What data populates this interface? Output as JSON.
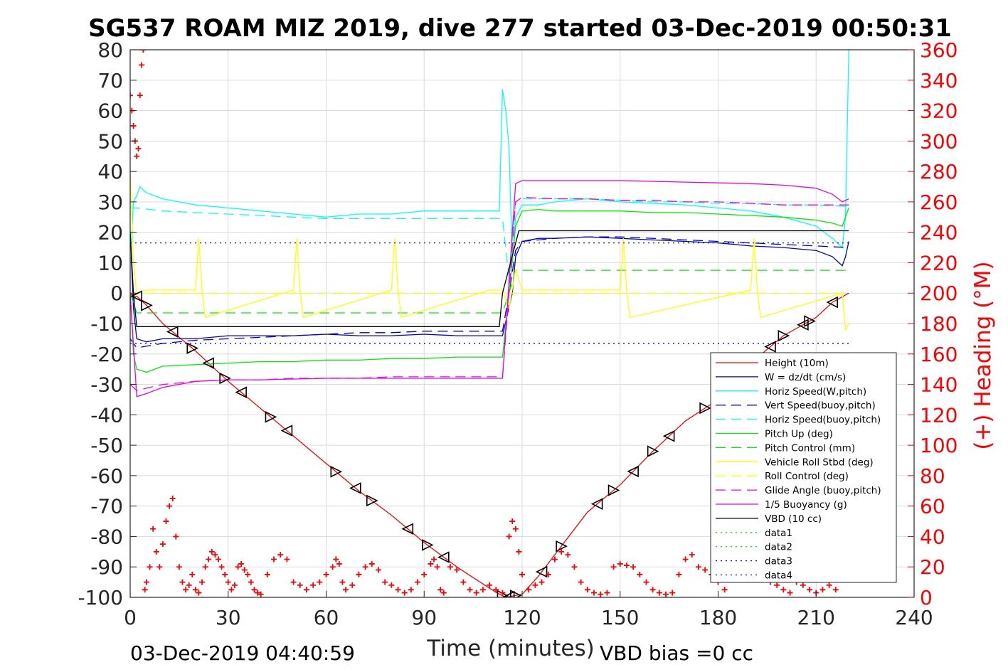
{
  "chart_data": {
    "type": "line",
    "title": "SG537 ROAM MIZ 2019, dive 277 started 03-Dec-2019 00:50:31",
    "xlabel": "Time (minutes)",
    "ylabel_right": "(+) Heading (°M)",
    "xlim": [
      0,
      240
    ],
    "ylim": [
      -100,
      80
    ],
    "ylim_right": [
      0,
      360
    ],
    "x_ticks": [
      "0",
      "30",
      "60",
      "90",
      "120",
      "150",
      "180",
      "210",
      "240"
    ],
    "y_ticks": [
      "80",
      "70",
      "60",
      "50",
      "40",
      "30",
      "20",
      "10",
      "0",
      "-10",
      "-20",
      "-30",
      "-40",
      "-50",
      "-60",
      "-70",
      "-80",
      "-90",
      "-100"
    ],
    "y_ticks_right": [
      "360",
      "340",
      "320",
      "300",
      "280",
      "260",
      "240",
      "220",
      "200",
      "180",
      "160",
      "140",
      "120",
      "100",
      "80",
      "60",
      "40",
      "20",
      "0"
    ],
    "grid": true,
    "legend_position": "lower-right",
    "footer_left": "03-Dec-2019 04:40:59",
    "footer_right": "VBD bias =0 cc",
    "series": [
      {
        "name": "Height (10m)",
        "color": "#ff0000",
        "style": "solid",
        "x": [
          0,
          1,
          2,
          5,
          10,
          20,
          30,
          40,
          50,
          60,
          70,
          80,
          90,
          100,
          110,
          113,
          115,
          120,
          125,
          130,
          140,
          150,
          160,
          170,
          180,
          190,
          200,
          210,
          215,
          220
        ],
        "y": [
          0,
          -1,
          -1,
          -4,
          -10,
          -19,
          -29,
          -38,
          -47,
          -56,
          -65,
          -73,
          -82,
          -90,
          -97,
          -99,
          -100,
          -99,
          -93,
          -86,
          -72,
          -63,
          -52,
          -42,
          -35,
          -23,
          -14,
          -8,
          -3,
          0
        ]
      },
      {
        "name": "W = dz/dt (cm/s)",
        "color": "#0000cc",
        "style": "solid",
        "x": [
          0,
          1,
          2,
          5,
          10,
          20,
          30,
          40,
          50,
          60,
          70,
          80,
          90,
          100,
          110,
          114,
          117,
          118,
          120,
          125,
          130,
          140,
          150,
          160,
          170,
          180,
          190,
          200,
          210,
          215,
          218,
          219,
          220
        ],
        "y": [
          20,
          -5,
          -15,
          -16,
          -15,
          -15,
          -14,
          -14,
          -14,
          -13.5,
          -14,
          -14,
          -13.5,
          -14,
          -14,
          -14,
          0,
          12,
          17,
          18,
          18,
          18.5,
          18,
          17.5,
          17,
          16.5,
          15.5,
          15,
          14,
          12,
          9,
          12,
          17
        ]
      },
      {
        "name": "Horiz Speed(W,pitch)",
        "color": "#00ffff",
        "style": "solid",
        "x": [
          0,
          1,
          2,
          3,
          5,
          10,
          20,
          30,
          40,
          50,
          60,
          70,
          80,
          90,
          100,
          110,
          113,
          114,
          115,
          116,
          117,
          118,
          120,
          125,
          130,
          140,
          150,
          160,
          170,
          180,
          190,
          200,
          210,
          215,
          218,
          219,
          220
        ],
        "y": [
          10,
          30,
          32,
          35,
          33,
          31,
          29,
          28,
          27,
          26,
          25,
          26,
          26,
          27,
          27,
          27,
          27,
          67,
          60,
          48,
          10,
          25,
          29,
          29,
          30,
          31,
          30,
          29.5,
          29,
          28,
          27,
          25,
          22,
          18,
          15,
          25,
          80
        ]
      },
      {
        "name": "Vert Speed(buoy,pitch)",
        "color": "#0000cc",
        "style": "dashed",
        "x": [
          0,
          2,
          10,
          20,
          30,
          40,
          50,
          60,
          70,
          80,
          90,
          100,
          110,
          114,
          116,
          118,
          120,
          130,
          140,
          150,
          160,
          170,
          180,
          190,
          200,
          210,
          220
        ],
        "y": [
          -15,
          -18,
          -16.5,
          -15.5,
          -15,
          -14.5,
          -14,
          -13.5,
          -13,
          -13,
          -12.5,
          -12.5,
          -12.5,
          -12.5,
          0,
          14,
          17,
          18,
          18.5,
          18.5,
          18,
          17.5,
          17,
          16.5,
          16,
          15.5,
          15
        ]
      },
      {
        "name": "Horiz Speed(buoy,pitch)",
        "color": "#00ffff",
        "style": "dashed",
        "x": [
          0,
          2,
          10,
          20,
          30,
          40,
          50,
          60,
          70,
          80,
          90,
          100,
          110,
          114,
          116,
          118,
          120,
          130,
          140,
          150,
          160,
          170,
          180,
          190,
          200,
          210,
          220
        ],
        "y": [
          28,
          28,
          27,
          26.5,
          26,
          25.5,
          25,
          24.5,
          24.5,
          24.5,
          24.5,
          24.5,
          24.5,
          24.5,
          5,
          30,
          31,
          31,
          31,
          30.5,
          30,
          30,
          29.5,
          29.5,
          29,
          29,
          28.5
        ]
      },
      {
        "name": "Pitch Up (deg)",
        "color": "#00ee00",
        "style": "solid",
        "x": [
          0,
          1,
          2,
          5,
          10,
          20,
          30,
          40,
          50,
          60,
          70,
          80,
          90,
          100,
          110,
          114,
          116,
          118,
          120,
          125,
          130,
          140,
          150,
          160,
          170,
          180,
          190,
          200,
          210,
          215,
          218,
          220
        ],
        "y": [
          0,
          -20,
          -25,
          -26,
          -24,
          -23.5,
          -23,
          -22.5,
          -22.5,
          -22,
          -22,
          -21.5,
          -21.5,
          -21,
          -21,
          -21,
          0,
          22,
          27,
          27.5,
          27,
          27,
          27,
          26.5,
          26.5,
          26,
          25.5,
          25,
          24,
          23,
          22,
          28
        ]
      },
      {
        "name": "Pitch Control (mm)",
        "color": "#00ee00",
        "style": "dashed",
        "x": [
          0,
          2,
          5,
          114,
          116,
          118,
          220
        ],
        "y": [
          0,
          -6.5,
          -6.5,
          -6.5,
          0,
          7.5,
          7.5
        ]
      },
      {
        "name": "Vehicle Roll Stbd (deg)",
        "color": "#ffff00",
        "style": "solid",
        "x": [
          0,
          1,
          2,
          5,
          20,
          21,
          22,
          23,
          50,
          51,
          52,
          53,
          80,
          81,
          82,
          83,
          110,
          114,
          116,
          118,
          120,
          150,
          151,
          152,
          153,
          190,
          191,
          192,
          193,
          218,
          219,
          220
        ],
        "y": [
          40,
          10,
          0,
          1,
          1,
          18,
          1,
          -8,
          1,
          18,
          1,
          -8,
          1,
          18,
          1,
          -8,
          1,
          1,
          -5,
          8,
          1,
          1,
          18,
          1,
          -8,
          1,
          18,
          1,
          -8,
          0,
          -12,
          -10
        ]
      },
      {
        "name": "Roll Control (deg)",
        "color": "#ffff00",
        "style": "dashed",
        "x": [
          0,
          220
        ],
        "y": [
          0,
          0
        ]
      },
      {
        "name": "Glide Angle (buoy,pitch)",
        "color": "#ee00ee",
        "style": "dashed",
        "x": [
          0,
          2,
          10,
          20,
          30,
          40,
          50,
          60,
          70,
          80,
          90,
          100,
          110,
          114,
          116,
          118,
          120,
          130,
          140,
          150,
          160,
          170,
          180,
          190,
          200,
          210,
          220
        ],
        "y": [
          -30,
          -32,
          -30,
          -29,
          -28.5,
          -28.5,
          -28,
          -28,
          -28,
          -27.5,
          -27.5,
          -27.5,
          -27.5,
          -27.5,
          0,
          30,
          31.5,
          31,
          31,
          30.5,
          30.5,
          30,
          30,
          29.5,
          29,
          29,
          29
        ]
      },
      {
        "name": "1/5 Buoyancy (g)",
        "color": "#ee00ee",
        "style": "solid",
        "x": [
          0,
          2,
          5,
          10,
          20,
          30,
          40,
          60,
          80,
          100,
          110,
          114,
          118,
          120,
          130,
          150,
          170,
          190,
          200,
          210,
          215,
          218,
          220
        ],
        "y": [
          0,
          -34,
          -33,
          -31,
          -29,
          -28.5,
          -28.5,
          -28,
          -28,
          -28,
          -28,
          -28,
          36,
          37,
          37,
          37,
          36.5,
          36,
          35.5,
          34.5,
          32.5,
          30,
          31
        ]
      },
      {
        "name": "VBD (10 cc)",
        "color": "#000000",
        "style": "solid",
        "x": [
          0,
          1,
          2,
          3,
          113,
          114,
          119,
          120,
          220
        ],
        "y": [
          20,
          0,
          -11,
          -11,
          -11,
          0,
          20.5,
          20.5,
          20.5
        ]
      },
      {
        "name": "data1",
        "color": "#00ee00",
        "style": "dotted",
        "x": [],
        "y": []
      },
      {
        "name": "data2",
        "color": "#00ee00",
        "style": "dotted",
        "x": [],
        "y": []
      },
      {
        "name": "data3",
        "color": "#0000cc",
        "style": "dotted",
        "x": [
          0,
          220
        ],
        "y": [
          16.5,
          16.5
        ]
      },
      {
        "name": "data4",
        "color": "#0000cc",
        "style": "dotted",
        "x": [
          0,
          220
        ],
        "y": [
          -16.5,
          -16.5
        ]
      }
    ],
    "heading_series": {
      "axis": "right",
      "color": "#ff0000",
      "marker": "+",
      "x": [
        0,
        0.5,
        1,
        1.5,
        2,
        2.5,
        3,
        3.5,
        4,
        4.5,
        5,
        6,
        7,
        8,
        9,
        10,
        11,
        12,
        13,
        14,
        15,
        16,
        17,
        18,
        19,
        20,
        21,
        22,
        23,
        24,
        25,
        26,
        27,
        28,
        29,
        30,
        31,
        32,
        33,
        34,
        35,
        36,
        37,
        38,
        39,
        40,
        42,
        44,
        46,
        48,
        50,
        52,
        54,
        56,
        58,
        60,
        62,
        63,
        64,
        65,
        66,
        68,
        70,
        72,
        74,
        76,
        78,
        80,
        82,
        84,
        86,
        88,
        90,
        92,
        93,
        94,
        95,
        96,
        98,
        100,
        102,
        104,
        106,
        108,
        110,
        112,
        114,
        116,
        117,
        118,
        119,
        120,
        122,
        124,
        126,
        128,
        130,
        132,
        134,
        136,
        138,
        140,
        142,
        144,
        146,
        148,
        150,
        152,
        154,
        156,
        158,
        160,
        162,
        164,
        166,
        168,
        170,
        172,
        174,
        176,
        178,
        180,
        182,
        184,
        186,
        188,
        190,
        192,
        194,
        196,
        198,
        200,
        202,
        204,
        206,
        208,
        210,
        212,
        214,
        216
      ],
      "y": [
        330,
        320,
        310,
        300,
        290,
        295,
        330,
        350,
        360,
        5,
        10,
        20,
        45,
        30,
        20,
        35,
        50,
        60,
        65,
        40,
        20,
        10,
        5,
        8,
        15,
        5,
        3,
        10,
        20,
        25,
        30,
        28,
        25,
        20,
        15,
        10,
        5,
        8,
        20,
        22,
        18,
        15,
        10,
        5,
        3,
        2,
        15,
        25,
        28,
        25,
        10,
        8,
        5,
        8,
        10,
        15,
        20,
        25,
        22,
        10,
        5,
        8,
        15,
        20,
        22,
        18,
        10,
        8,
        5,
        3,
        5,
        10,
        15,
        22,
        25,
        20,
        5,
        3,
        20,
        18,
        10,
        5,
        3,
        5,
        8,
        5,
        3,
        40,
        50,
        45,
        30,
        15,
        5,
        8,
        10,
        15,
        25,
        30,
        28,
        20,
        10,
        5,
        3,
        2,
        3,
        20,
        22,
        21,
        20,
        15,
        10,
        5,
        3,
        2,
        3,
        15,
        25,
        28,
        20,
        18,
        15,
        10,
        5,
        15,
        20,
        28,
        30,
        25,
        15,
        10,
        8,
        5,
        3,
        10,
        8,
        5,
        3,
        5,
        8,
        5
      ]
    }
  }
}
